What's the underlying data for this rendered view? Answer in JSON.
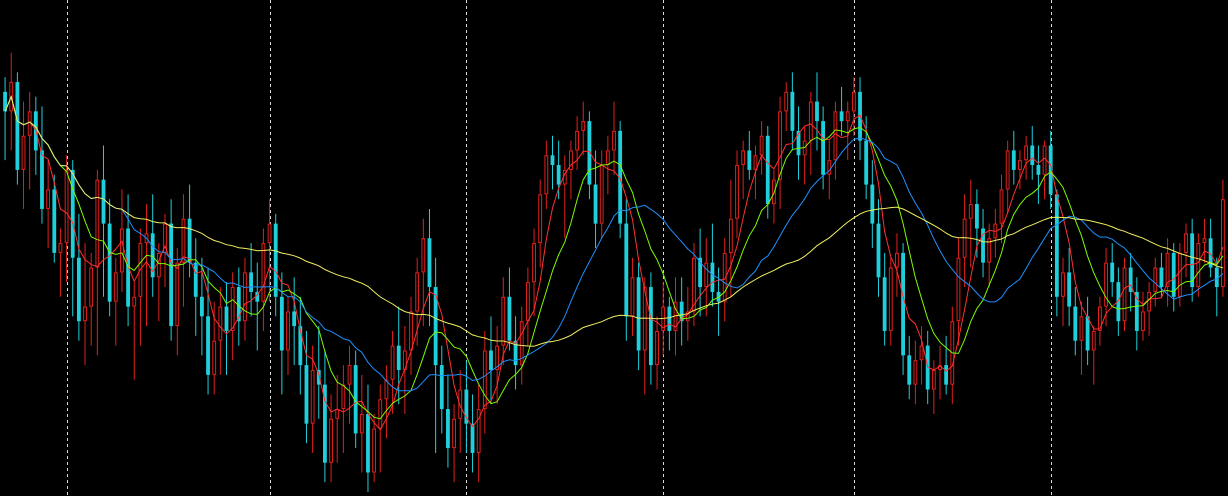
{
  "colors": {
    "background": "#000000",
    "grid": "#ffffff",
    "bull": "#e0201c",
    "bear": "#1fd0dc",
    "ma_red": "#ff3030",
    "ma_green": "#7cfc00",
    "ma_blue": "#1e90ff",
    "ma_yellow": "#f0f060"
  },
  "chart_data": {
    "type": "candlestick",
    "title": "",
    "xlabel": "",
    "ylabel": "",
    "ylim": [
      0,
      100
    ],
    "grid": "vertical dashed",
    "legend": "none",
    "vertical_gridline_bar_index": [
      10,
      43,
      75,
      107,
      138,
      170,
      202
    ],
    "candles": [
      [
        82,
        85,
        68,
        78
      ],
      [
        78,
        90,
        70,
        84
      ],
      [
        84,
        86,
        63,
        66
      ],
      [
        66,
        80,
        58,
        73
      ],
      [
        73,
        82,
        62,
        78
      ],
      [
        78,
        81,
        65,
        70
      ],
      [
        70,
        79,
        55,
        58
      ],
      [
        58,
        68,
        50,
        62
      ],
      [
        62,
        65,
        47,
        49
      ],
      [
        49,
        54,
        40,
        51
      ],
      [
        51,
        69,
        43,
        66
      ],
      [
        66,
        68,
        36,
        48
      ],
      [
        48,
        57,
        31,
        35
      ],
      [
        35,
        51,
        26,
        38
      ],
      [
        38,
        49,
        30,
        46
      ],
      [
        46,
        66,
        28,
        64
      ],
      [
        64,
        71,
        40,
        55
      ],
      [
        55,
        60,
        36,
        39
      ],
      [
        39,
        48,
        30,
        45
      ],
      [
        45,
        62,
        41,
        54
      ],
      [
        54,
        61,
        34,
        38
      ],
      [
        38,
        43,
        23,
        40
      ],
      [
        40,
        54,
        30,
        51
      ],
      [
        51,
        59,
        34,
        53
      ],
      [
        53,
        61,
        40,
        44
      ],
      [
        44,
        51,
        35,
        49
      ],
      [
        49,
        57,
        42,
        55
      ],
      [
        55,
        60,
        31,
        34
      ],
      [
        34,
        50,
        28,
        47
      ],
      [
        47,
        61,
        38,
        56
      ],
      [
        56,
        63,
        44,
        47
      ],
      [
        47,
        52,
        32,
        40
      ],
      [
        40,
        48,
        28,
        36
      ],
      [
        36,
        46,
        20,
        24
      ],
      [
        24,
        39,
        20,
        31
      ],
      [
        31,
        42,
        24,
        38
      ],
      [
        38,
        43,
        24,
        33
      ],
      [
        33,
        45,
        27,
        42
      ],
      [
        42,
        46,
        30,
        35
      ],
      [
        35,
        48,
        31,
        45
      ],
      [
        45,
        51,
        36,
        41
      ],
      [
        41,
        47,
        29,
        39
      ],
      [
        39,
        54,
        33,
        51
      ],
      [
        51,
        60,
        39,
        55
      ],
      [
        55,
        57,
        36,
        40
      ],
      [
        40,
        45,
        20,
        29
      ],
      [
        29,
        40,
        24,
        37
      ],
      [
        37,
        44,
        26,
        34
      ],
      [
        34,
        40,
        20,
        26
      ],
      [
        26,
        33,
        10,
        14
      ],
      [
        14,
        30,
        8,
        25
      ],
      [
        25,
        34,
        15,
        22
      ],
      [
        22,
        29,
        2,
        6
      ],
      [
        6,
        20,
        2,
        15
      ],
      [
        15,
        24,
        6,
        17
      ],
      [
        17,
        26,
        8,
        22
      ],
      [
        22,
        30,
        14,
        26
      ],
      [
        26,
        29,
        9,
        12
      ],
      [
        12,
        24,
        4,
        16
      ],
      [
        16,
        22,
        0,
        4
      ],
      [
        4,
        16,
        2,
        13
      ],
      [
        13,
        22,
        4,
        19
      ],
      [
        19,
        26,
        11,
        23
      ],
      [
        23,
        33,
        16,
        30
      ],
      [
        30,
        38,
        18,
        25
      ],
      [
        25,
        34,
        16,
        29
      ],
      [
        29,
        40,
        24,
        37
      ],
      [
        37,
        48,
        30,
        45
      ],
      [
        45,
        56,
        34,
        52
      ],
      [
        52,
        58,
        34,
        42
      ],
      [
        42,
        48,
        8,
        26
      ],
      [
        26,
        30,
        12,
        17
      ],
      [
        17,
        24,
        5,
        9
      ],
      [
        9,
        18,
        2,
        15
      ],
      [
        15,
        25,
        8,
        21
      ],
      [
        21,
        27,
        8,
        14
      ],
      [
        14,
        20,
        4,
        8
      ],
      [
        8,
        22,
        2,
        17
      ],
      [
        17,
        33,
        12,
        29
      ],
      [
        29,
        36,
        18,
        25
      ],
      [
        25,
        34,
        18,
        30
      ],
      [
        30,
        44,
        26,
        40
      ],
      [
        40,
        46,
        29,
        31
      ],
      [
        31,
        36,
        21,
        26
      ],
      [
        26,
        38,
        22,
        35
      ],
      [
        35,
        46,
        30,
        43
      ],
      [
        43,
        54,
        36,
        51
      ],
      [
        51,
        64,
        46,
        61
      ],
      [
        61,
        72,
        58,
        69
      ],
      [
        69,
        73,
        62,
        67
      ],
      [
        67,
        72,
        60,
        63
      ],
      [
        63,
        69,
        52,
        66
      ],
      [
        66,
        72,
        60,
        70
      ],
      [
        70,
        77,
        66,
        74
      ],
      [
        74,
        80,
        69,
        76
      ],
      [
        76,
        78,
        60,
        63
      ],
      [
        63,
        70,
        50,
        55
      ],
      [
        55,
        70,
        52,
        67
      ],
      [
        67,
        73,
        61,
        70
      ],
      [
        70,
        80,
        65,
        74
      ],
      [
        74,
        76,
        52,
        55
      ],
      [
        55,
        60,
        31,
        36
      ],
      [
        36,
        48,
        32,
        44
      ],
      [
        44,
        47,
        25,
        29
      ],
      [
        29,
        44,
        20,
        42
      ],
      [
        42,
        45,
        22,
        26
      ],
      [
        26,
        36,
        21,
        33
      ],
      [
        33,
        43,
        28,
        38
      ],
      [
        38,
        40,
        29,
        33
      ],
      [
        33,
        44,
        28,
        39
      ],
      [
        39,
        44,
        30,
        35
      ],
      [
        35,
        42,
        31,
        37
      ],
      [
        37,
        51,
        34,
        48
      ],
      [
        48,
        54,
        36,
        42
      ],
      [
        42,
        52,
        36,
        47
      ],
      [
        47,
        55,
        38,
        41
      ],
      [
        41,
        46,
        32,
        39
      ],
      [
        39,
        52,
        35,
        49
      ],
      [
        49,
        64,
        40,
        56
      ],
      [
        56,
        70,
        52,
        67
      ],
      [
        67,
        72,
        60,
        70
      ],
      [
        70,
        74,
        64,
        66
      ],
      [
        66,
        71,
        60,
        69
      ],
      [
        69,
        76,
        65,
        73
      ],
      [
        73,
        75,
        56,
        59
      ],
      [
        59,
        66,
        55,
        64
      ],
      [
        64,
        81,
        58,
        78
      ],
      [
        78,
        84,
        74,
        82
      ],
      [
        82,
        86,
        70,
        74
      ],
      [
        74,
        79,
        64,
        69
      ],
      [
        69,
        75,
        63,
        72
      ],
      [
        72,
        82,
        65,
        80
      ],
      [
        80,
        86,
        70,
        76
      ],
      [
        76,
        79,
        62,
        65
      ],
      [
        65,
        72,
        60,
        68
      ],
      [
        68,
        80,
        64,
        78
      ],
      [
        78,
        83,
        73,
        76
      ],
      [
        76,
        80,
        68,
        78
      ],
      [
        78,
        85,
        73,
        82
      ],
      [
        82,
        85,
        68,
        72
      ],
      [
        72,
        77,
        60,
        63
      ],
      [
        63,
        68,
        50,
        55
      ],
      [
        55,
        60,
        40,
        44
      ],
      [
        44,
        49,
        30,
        33
      ],
      [
        33,
        48,
        30,
        46
      ],
      [
        46,
        53,
        40,
        49
      ],
      [
        49,
        51,
        24,
        28
      ],
      [
        28,
        32,
        19,
        22
      ],
      [
        22,
        31,
        18,
        27
      ],
      [
        27,
        34,
        22,
        30
      ],
      [
        30,
        33,
        18,
        21
      ],
      [
        21,
        27,
        16,
        25
      ],
      [
        25,
        30,
        19,
        26
      ],
      [
        26,
        32,
        20,
        22
      ],
      [
        22,
        38,
        18,
        35
      ],
      [
        35,
        52,
        30,
        48
      ],
      [
        48,
        61,
        42,
        56
      ],
      [
        56,
        64,
        46,
        59
      ],
      [
        59,
        62,
        48,
        54
      ],
      [
        54,
        58,
        44,
        47
      ],
      [
        47,
        55,
        42,
        52
      ],
      [
        52,
        58,
        48,
        55
      ],
      [
        55,
        65,
        51,
        62
      ],
      [
        62,
        72,
        57,
        70
      ],
      [
        70,
        74,
        63,
        66
      ],
      [
        66,
        70,
        62,
        68
      ],
      [
        68,
        73,
        64,
        71
      ],
      [
        71,
        75,
        64,
        67
      ],
      [
        67,
        71,
        59,
        65
      ],
      [
        65,
        72,
        60,
        71
      ],
      [
        71,
        74,
        58,
        61
      ],
      [
        61,
        62,
        36,
        40
      ],
      [
        40,
        48,
        34,
        45
      ],
      [
        45,
        50,
        34,
        38
      ],
      [
        38,
        42,
        28,
        31
      ],
      [
        31,
        39,
        24,
        36
      ],
      [
        36,
        40,
        26,
        29
      ],
      [
        29,
        34,
        22,
        33
      ],
      [
        33,
        40,
        30,
        38
      ],
      [
        38,
        50,
        34,
        47
      ],
      [
        47,
        51,
        40,
        43
      ],
      [
        43,
        46,
        32,
        35
      ],
      [
        35,
        48,
        33,
        46
      ],
      [
        46,
        49,
        37,
        41
      ],
      [
        41,
        44,
        29,
        33
      ],
      [
        33,
        41,
        31,
        37
      ],
      [
        37,
        43,
        32,
        41
      ],
      [
        41,
        48,
        38,
        46
      ],
      [
        46,
        49,
        40,
        42
      ],
      [
        42,
        52,
        38,
        49
      ],
      [
        49,
        51,
        37,
        40
      ],
      [
        40,
        51,
        38,
        49
      ],
      [
        49,
        55,
        44,
        53
      ],
      [
        53,
        56,
        39,
        42
      ],
      [
        42,
        53,
        40,
        51
      ],
      [
        51,
        56,
        47,
        52
      ],
      [
        52,
        56,
        44,
        46
      ],
      [
        46,
        48,
        36,
        42
      ],
      [
        42,
        64,
        40,
        60
      ]
    ],
    "moving_averages": [
      {
        "color": "ma_red",
        "period": 5
      },
      {
        "color": "ma_green",
        "period": 10
      },
      {
        "color": "ma_blue",
        "period": 20
      },
      {
        "color": "ma_yellow",
        "period": 60
      }
    ]
  }
}
